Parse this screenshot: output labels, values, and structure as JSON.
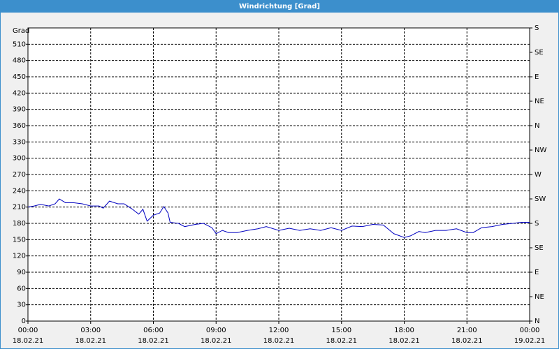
{
  "chart_data": {
    "type": "line",
    "title": "Windrichtung [Grad]",
    "ylabel": "Grad",
    "x": [
      0,
      0.3,
      0.6,
      1.0,
      1.3,
      1.5,
      1.8,
      2.2,
      2.6,
      3.0,
      3.4,
      3.6,
      3.9,
      4.3,
      4.6,
      5.0,
      5.3,
      5.5,
      5.7,
      6.0,
      6.3,
      6.5,
      6.7,
      6.8,
      7.2,
      7.5,
      8.0,
      8.4,
      8.8,
      9.0,
      9.3,
      9.6,
      10.0,
      10.5,
      11.0,
      11.4,
      12.0,
      12.5,
      13.0,
      13.5,
      14.0,
      14.5,
      15.0,
      15.5,
      16.0,
      16.5,
      17.0,
      17.5,
      18.0,
      18.3,
      18.7,
      19.0,
      19.5,
      20.0,
      20.5,
      21.0,
      21.3,
      21.7,
      22.2,
      22.7,
      23.2,
      23.6,
      24.0
    ],
    "series": [
      {
        "name": "Windrichtung",
        "color": "#0000c0",
        "values": [
          210,
          212,
          215,
          212,
          216,
          225,
          218,
          218,
          216,
          212,
          212,
          208,
          221,
          216,
          216,
          206,
          197,
          206,
          184,
          195,
          199,
          211,
          199,
          182,
          180,
          174,
          178,
          180,
          172,
          161,
          167,
          163,
          163,
          167,
          170,
          174,
          167,
          171,
          167,
          170,
          167,
          172,
          167,
          175,
          174,
          178,
          177,
          161,
          154,
          157,
          165,
          163,
          167,
          167,
          170,
          163,
          163,
          172,
          174,
          178,
          180,
          182,
          182
        ]
      }
    ],
    "xlim": [
      0,
      24
    ],
    "xticks": [
      {
        "value": 0,
        "label": "00:00"
      },
      {
        "value": 3,
        "label": "03:00"
      },
      {
        "value": 6,
        "label": "06:00"
      },
      {
        "value": 9,
        "label": "09:00"
      },
      {
        "value": 12,
        "label": "12:00"
      },
      {
        "value": 15,
        "label": "15:00"
      },
      {
        "value": 18,
        "label": "18:00"
      },
      {
        "value": 21,
        "label": "21:00"
      },
      {
        "value": 24,
        "label": "00:00"
      }
    ],
    "xtick_dates": [
      "18.02.21",
      "18.02.21",
      "18.02.21",
      "18.02.21",
      "18.02.21",
      "18.02.21",
      "18.02.21",
      "18.02.21",
      "19.02.21"
    ],
    "ylim": [
      0,
      540
    ],
    "yticks": [
      0,
      30,
      60,
      90,
      120,
      150,
      180,
      210,
      240,
      270,
      300,
      330,
      360,
      390,
      420,
      450,
      480,
      510
    ],
    "y2lim": [
      0,
      540
    ],
    "y2ticks": [
      {
        "value": 0,
        "label": "N"
      },
      {
        "value": 45,
        "label": "NE"
      },
      {
        "value": 90,
        "label": "E"
      },
      {
        "value": 135,
        "label": "SE"
      },
      {
        "value": 180,
        "label": "S"
      },
      {
        "value": 225,
        "label": "SW"
      },
      {
        "value": 270,
        "label": "W"
      },
      {
        "value": 315,
        "label": "NW"
      },
      {
        "value": 360,
        "label": "N"
      },
      {
        "value": 405,
        "label": "NE"
      },
      {
        "value": 450,
        "label": "E"
      },
      {
        "value": 495,
        "label": "SE"
      },
      {
        "value": 540,
        "label": "S"
      }
    ],
    "grid": true
  }
}
